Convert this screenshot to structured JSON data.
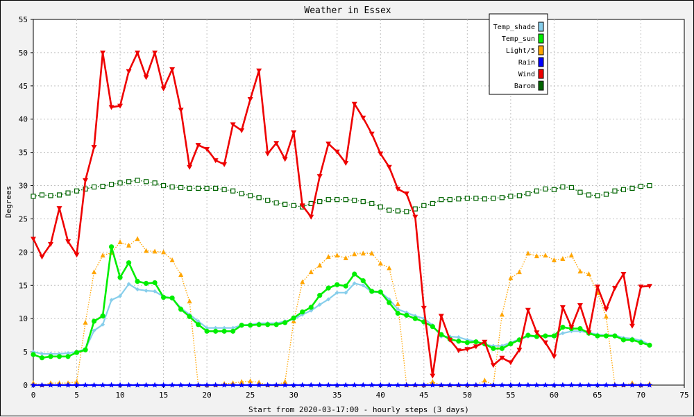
{
  "chart_data": {
    "type": "line",
    "title": "Weather in Essex",
    "xlabel": "Start from 2020-03-17:00 - hourly steps (3 days)",
    "ylabel": "Degrees",
    "xlim": [
      0,
      75
    ],
    "ylim": [
      0,
      55
    ],
    "x_ticks": [
      0,
      5,
      10,
      15,
      20,
      25,
      30,
      35,
      40,
      45,
      50,
      55,
      60,
      65,
      70,
      75
    ],
    "y_ticks": [
      0,
      5,
      10,
      15,
      20,
      25,
      30,
      35,
      40,
      45,
      50,
      55
    ],
    "grid": true,
    "legend_position": "top-right",
    "series": [
      {
        "name": "Temp_shade",
        "color": "#87ceeb",
        "marker": "diamond",
        "style": "solid",
        "values": [
          5.0,
          4.7,
          4.7,
          4.7,
          4.8,
          5.0,
          5.4,
          8.2,
          9.1,
          12.8,
          13.4,
          15.2,
          14.4,
          14.2,
          14.1,
          13.3,
          13.1,
          11.6,
          10.6,
          9.6,
          8.6,
          8.6,
          8.6,
          8.6,
          9.0,
          9.1,
          9.3,
          9.3,
          9.3,
          9.6,
          9.9,
          10.6,
          11.2,
          12.1,
          12.9,
          13.9,
          13.9,
          15.3,
          15.0,
          14.0,
          14.0,
          12.9,
          11.4,
          10.9,
          10.4,
          10.0,
          9.0,
          7.3,
          7.3,
          7.2,
          6.8,
          6.6,
          6.1,
          5.9,
          5.9,
          6.4,
          6.9,
          7.3,
          7.3,
          7.3,
          7.3,
          7.8,
          8.1,
          8.1,
          7.9,
          7.6,
          7.5,
          7.5,
          7.1,
          7.0,
          6.7,
          6.1
        ]
      },
      {
        "name": "Temp_sun",
        "color": "#00ee00",
        "marker": "circle",
        "style": "solid",
        "values": [
          4.6,
          4.1,
          4.3,
          4.3,
          4.3,
          4.9,
          5.3,
          9.6,
          10.4,
          20.8,
          16.2,
          18.4,
          15.6,
          15.3,
          15.4,
          13.2,
          13.1,
          11.4,
          10.3,
          9.1,
          8.1,
          8.1,
          8.1,
          8.1,
          9.0,
          9.0,
          9.1,
          9.1,
          9.1,
          9.4,
          10.1,
          11.0,
          11.7,
          13.5,
          14.6,
          15.1,
          14.9,
          16.7,
          15.7,
          14.1,
          14.0,
          12.4,
          10.8,
          10.5,
          10.0,
          9.5,
          8.8,
          7.6,
          6.9,
          6.6,
          6.4,
          6.5,
          6.2,
          5.5,
          5.5,
          6.2,
          6.8,
          7.5,
          7.3,
          7.4,
          7.4,
          8.7,
          8.5,
          8.5,
          7.8,
          7.4,
          7.4,
          7.4,
          6.8,
          6.8,
          6.4,
          6.0
        ]
      },
      {
        "name": "Light/5",
        "color": "#ffa500",
        "marker": "triangle-up",
        "style": "dotted",
        "values": [
          0.3,
          0,
          0.3,
          0.3,
          0.3,
          0.5,
          9.4,
          17.0,
          19.5,
          19.9,
          21.5,
          21.0,
          22.0,
          20.2,
          20.1,
          20.0,
          18.8,
          16.6,
          12.6,
          0,
          0,
          0,
          0.2,
          0.3,
          0.5,
          0.6,
          0.4,
          0,
          0,
          0.5,
          9.6,
          15.5,
          17.0,
          18.0,
          19.3,
          19.5,
          19.1,
          19.7,
          19.8,
          19.8,
          18.3,
          17.6,
          12.2,
          0,
          0,
          0,
          0.5,
          0,
          0,
          0,
          0,
          0,
          0.7,
          0,
          10.6,
          16.1,
          17.0,
          19.8,
          19.4,
          19.5,
          18.8,
          19.0,
          19.5,
          17.1,
          16.7,
          13.9,
          10.3,
          0,
          0,
          0.3,
          0,
          0.2
        ]
      },
      {
        "name": "Rain",
        "color": "#0000ff",
        "marker": "star",
        "style": "solid",
        "values": [
          0,
          0,
          0,
          0,
          0,
          0,
          0,
          0,
          0,
          0,
          0,
          0,
          0,
          0,
          0,
          0,
          0,
          0,
          0,
          0,
          0,
          0,
          0,
          0,
          0,
          0,
          0,
          0,
          0,
          0,
          0,
          0,
          0,
          0,
          0,
          0,
          0,
          0,
          0,
          0,
          0,
          0,
          0,
          0,
          0,
          0,
          0,
          0,
          0,
          0,
          0,
          0,
          0,
          0,
          0,
          0,
          0,
          0,
          0,
          0,
          0,
          0,
          0,
          0,
          0,
          0,
          0,
          0,
          0,
          0,
          0,
          0
        ]
      },
      {
        "name": "Wind",
        "color": "#ee0000",
        "marker": "triangle-down",
        "style": "solid",
        "values": [
          22.0,
          19.3,
          21.2,
          26.6,
          21.6,
          19.6,
          30.8,
          35.8,
          50.0,
          41.8,
          42.0,
          47.2,
          50.0,
          46.3,
          50.0,
          44.6,
          47.5,
          41.4,
          32.8,
          36.1,
          35.5,
          33.8,
          33.2,
          39.2,
          38.3,
          43.0,
          47.3,
          34.8,
          36.4,
          34.0,
          38.0,
          27.0,
          25.3,
          31.4,
          36.3,
          35.1,
          33.4,
          42.3,
          40.2,
          37.8,
          34.8,
          32.8,
          29.5,
          28.8,
          25.3,
          11.6,
          1.4,
          10.4,
          6.8,
          5.2,
          5.4,
          5.8,
          6.5,
          3.0,
          4.1,
          3.4,
          5.3,
          11.3,
          7.9,
          6.4,
          4.3,
          11.7,
          8.7,
          12.0,
          7.9,
          14.8,
          11.4,
          14.6,
          16.7,
          8.9,
          14.8,
          14.9
        ]
      },
      {
        "name": "Barom",
        "color": "#006400",
        "marker": "square",
        "style": "dotted",
        "values": [
          28.4,
          28.6,
          28.5,
          28.6,
          28.9,
          29.2,
          29.5,
          29.8,
          29.9,
          30.2,
          30.4,
          30.6,
          30.8,
          30.6,
          30.4,
          30.0,
          29.8,
          29.7,
          29.6,
          29.6,
          29.6,
          29.6,
          29.4,
          29.2,
          28.8,
          28.5,
          28.2,
          27.8,
          27.4,
          27.2,
          27.0,
          26.8,
          27.3,
          27.6,
          27.9,
          27.9,
          27.9,
          27.8,
          27.6,
          27.3,
          26.8,
          26.3,
          26.2,
          26.1,
          26.5,
          27.0,
          27.3,
          27.9,
          27.9,
          28.0,
          28.1,
          28.1,
          28.0,
          28.1,
          28.2,
          28.4,
          28.5,
          28.8,
          29.2,
          29.5,
          29.4,
          29.8,
          29.7,
          29.0,
          28.6,
          28.5,
          28.7,
          29.2,
          29.4,
          29.6,
          29.9,
          30.0
        ]
      }
    ]
  }
}
